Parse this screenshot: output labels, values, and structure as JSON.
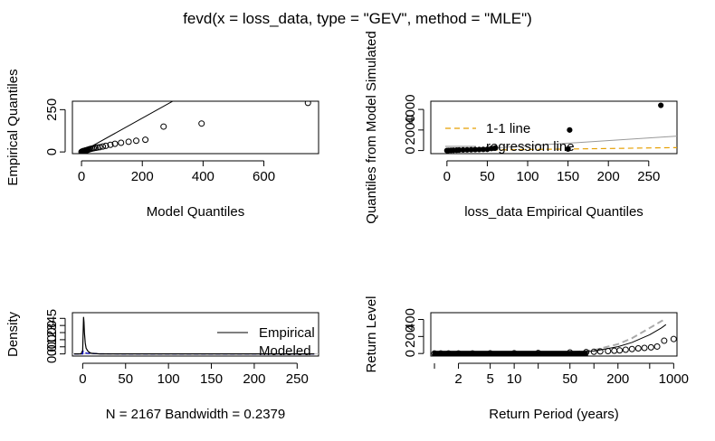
{
  "figure": {
    "title": "fevd(x = loss_data, type = \"GEV\", method = \"MLE\")"
  },
  "chart_data": [
    {
      "type": "scatter",
      "xlabel": "Model Quantiles",
      "ylabel": "Empirical Quantiles",
      "xlim": [
        -30,
        780
      ],
      "ylim": [
        -10,
        300
      ],
      "xticks": [
        0,
        200,
        400,
        600
      ],
      "yticks": [
        0,
        250
      ],
      "points": {
        "x": [
          0,
          1,
          2,
          3,
          4,
          5,
          6,
          8,
          10,
          12,
          14,
          16,
          18,
          20,
          23,
          26,
          30,
          35,
          40,
          46,
          52,
          60,
          70,
          80,
          95,
          110,
          130,
          155,
          180,
          210,
          270,
          395,
          745
        ],
        "y": [
          0,
          1,
          2,
          3,
          3,
          4,
          5,
          6,
          7,
          8,
          9,
          10,
          11,
          12,
          14,
          16,
          18,
          20,
          22,
          24,
          26,
          28,
          32,
          36,
          42,
          48,
          54,
          60,
          66,
          72,
          150,
          168,
          290
        ]
      },
      "line_1_1": [
        [
          -30,
          -30
        ],
        [
          780,
          780
        ]
      ]
    },
    {
      "type": "scatter",
      "xlabel": "loss_data Empirical Quantiles",
      "ylabel": "Quantiles from Model Simulated",
      "xlim": [
        -20,
        285
      ],
      "ylim": [
        -300,
        4800
      ],
      "xticks": [
        0,
        50,
        100,
        150,
        200,
        250
      ],
      "yticks": [
        0,
        2000,
        4000
      ],
      "legend": {
        "entries": [
          "1-1 line",
          "regression line"
        ],
        "position": "top-left",
        "colors": [
          "#e69f00",
          "#888888"
        ]
      },
      "points": {
        "x": [
          0,
          2,
          5,
          8,
          12,
          15,
          20,
          25,
          30,
          35,
          40,
          45,
          50,
          55,
          60,
          150,
          152,
          265
        ],
        "y": [
          0,
          10,
          20,
          30,
          40,
          50,
          60,
          70,
          80,
          90,
          100,
          110,
          120,
          200,
          250,
          150,
          2000,
          4400
        ]
      },
      "regression_line": [
        [
          0,
          -50
        ],
        [
          285,
          1400
        ]
      ],
      "line_1_1": [
        [
          0,
          0
        ],
        [
          285,
          285
        ]
      ]
    },
    {
      "type": "line",
      "xlabel": "N = 2167   Bandwidth = 0.2379",
      "ylabel": "Density",
      "xlim": [
        -12,
        275
      ],
      "ylim": [
        -0.03,
        0.58
      ],
      "xticks": [
        0,
        50,
        100,
        150,
        200,
        250
      ],
      "yticks": [
        0.0,
        0.1,
        0.2,
        0.3,
        0.4,
        0.5
      ],
      "ytick_labels": [
        "0.0",
        "0.1",
        "0.2",
        "0.3",
        "0.4",
        "0.5"
      ],
      "legend": {
        "entries": [
          "Empirical",
          "Modeled"
        ],
        "position": "bottom-right",
        "colors": [
          "#000000",
          "#0000cc"
        ]
      },
      "series": [
        {
          "name": "Empirical",
          "x": [
            -10,
            -2,
            0,
            0.5,
            1,
            1.5,
            2,
            3,
            4,
            6,
            8,
            10,
            15,
            20,
            40,
            100,
            200,
            270
          ],
          "y": [
            0,
            0,
            0.05,
            0.3,
            0.52,
            0.45,
            0.3,
            0.15,
            0.08,
            0.04,
            0.02,
            0.01,
            0.005,
            0,
            0,
            0,
            0,
            0
          ]
        },
        {
          "name": "Modeled",
          "x": [
            -10,
            0,
            0.5,
            1,
            2,
            3,
            5,
            10,
            20,
            50,
            100,
            200,
            270
          ],
          "y": [
            0,
            0,
            0.04,
            0.03,
            0.02,
            0.015,
            0.01,
            0.005,
            0.002,
            0,
            0,
            0,
            0
          ]
        }
      ]
    },
    {
      "type": "line",
      "xlabel": "Return Period (years)",
      "ylabel": "Return Level",
      "xscale": "log",
      "xlim": [
        0.9,
        1100
      ],
      "ylim": [
        -30,
        480
      ],
      "xticks": [
        2,
        5,
        10,
        50,
        200,
        1000
      ],
      "yticks": [
        0,
        200,
        400
      ],
      "points": {
        "x": [
          1.0,
          1.2,
          1.5,
          2,
          3,
          5,
          10,
          20,
          50,
          80,
          100,
          120,
          150,
          180,
          210,
          250,
          300,
          360,
          430,
          520,
          620,
          760,
          1000
        ],
        "y": [
          0,
          0,
          0,
          0,
          1,
          2,
          3,
          6,
          12,
          16,
          20,
          24,
          28,
          32,
          36,
          44,
          52,
          60,
          66,
          72,
          82,
          150,
          170
        ]
      },
      "fitted_curve": {
        "x": [
          1,
          10,
          50,
          100,
          200,
          300,
          500,
          700,
          800
        ],
        "y": [
          0,
          3,
          10,
          28,
          80,
          130,
          220,
          300,
          340
        ]
      },
      "ci_upper": {
        "x": [
          1,
          10,
          50,
          100,
          200,
          300,
          500,
          700,
          800
        ],
        "y": [
          0,
          4,
          14,
          40,
          110,
          180,
          300,
          380,
          410
        ]
      }
    }
  ]
}
